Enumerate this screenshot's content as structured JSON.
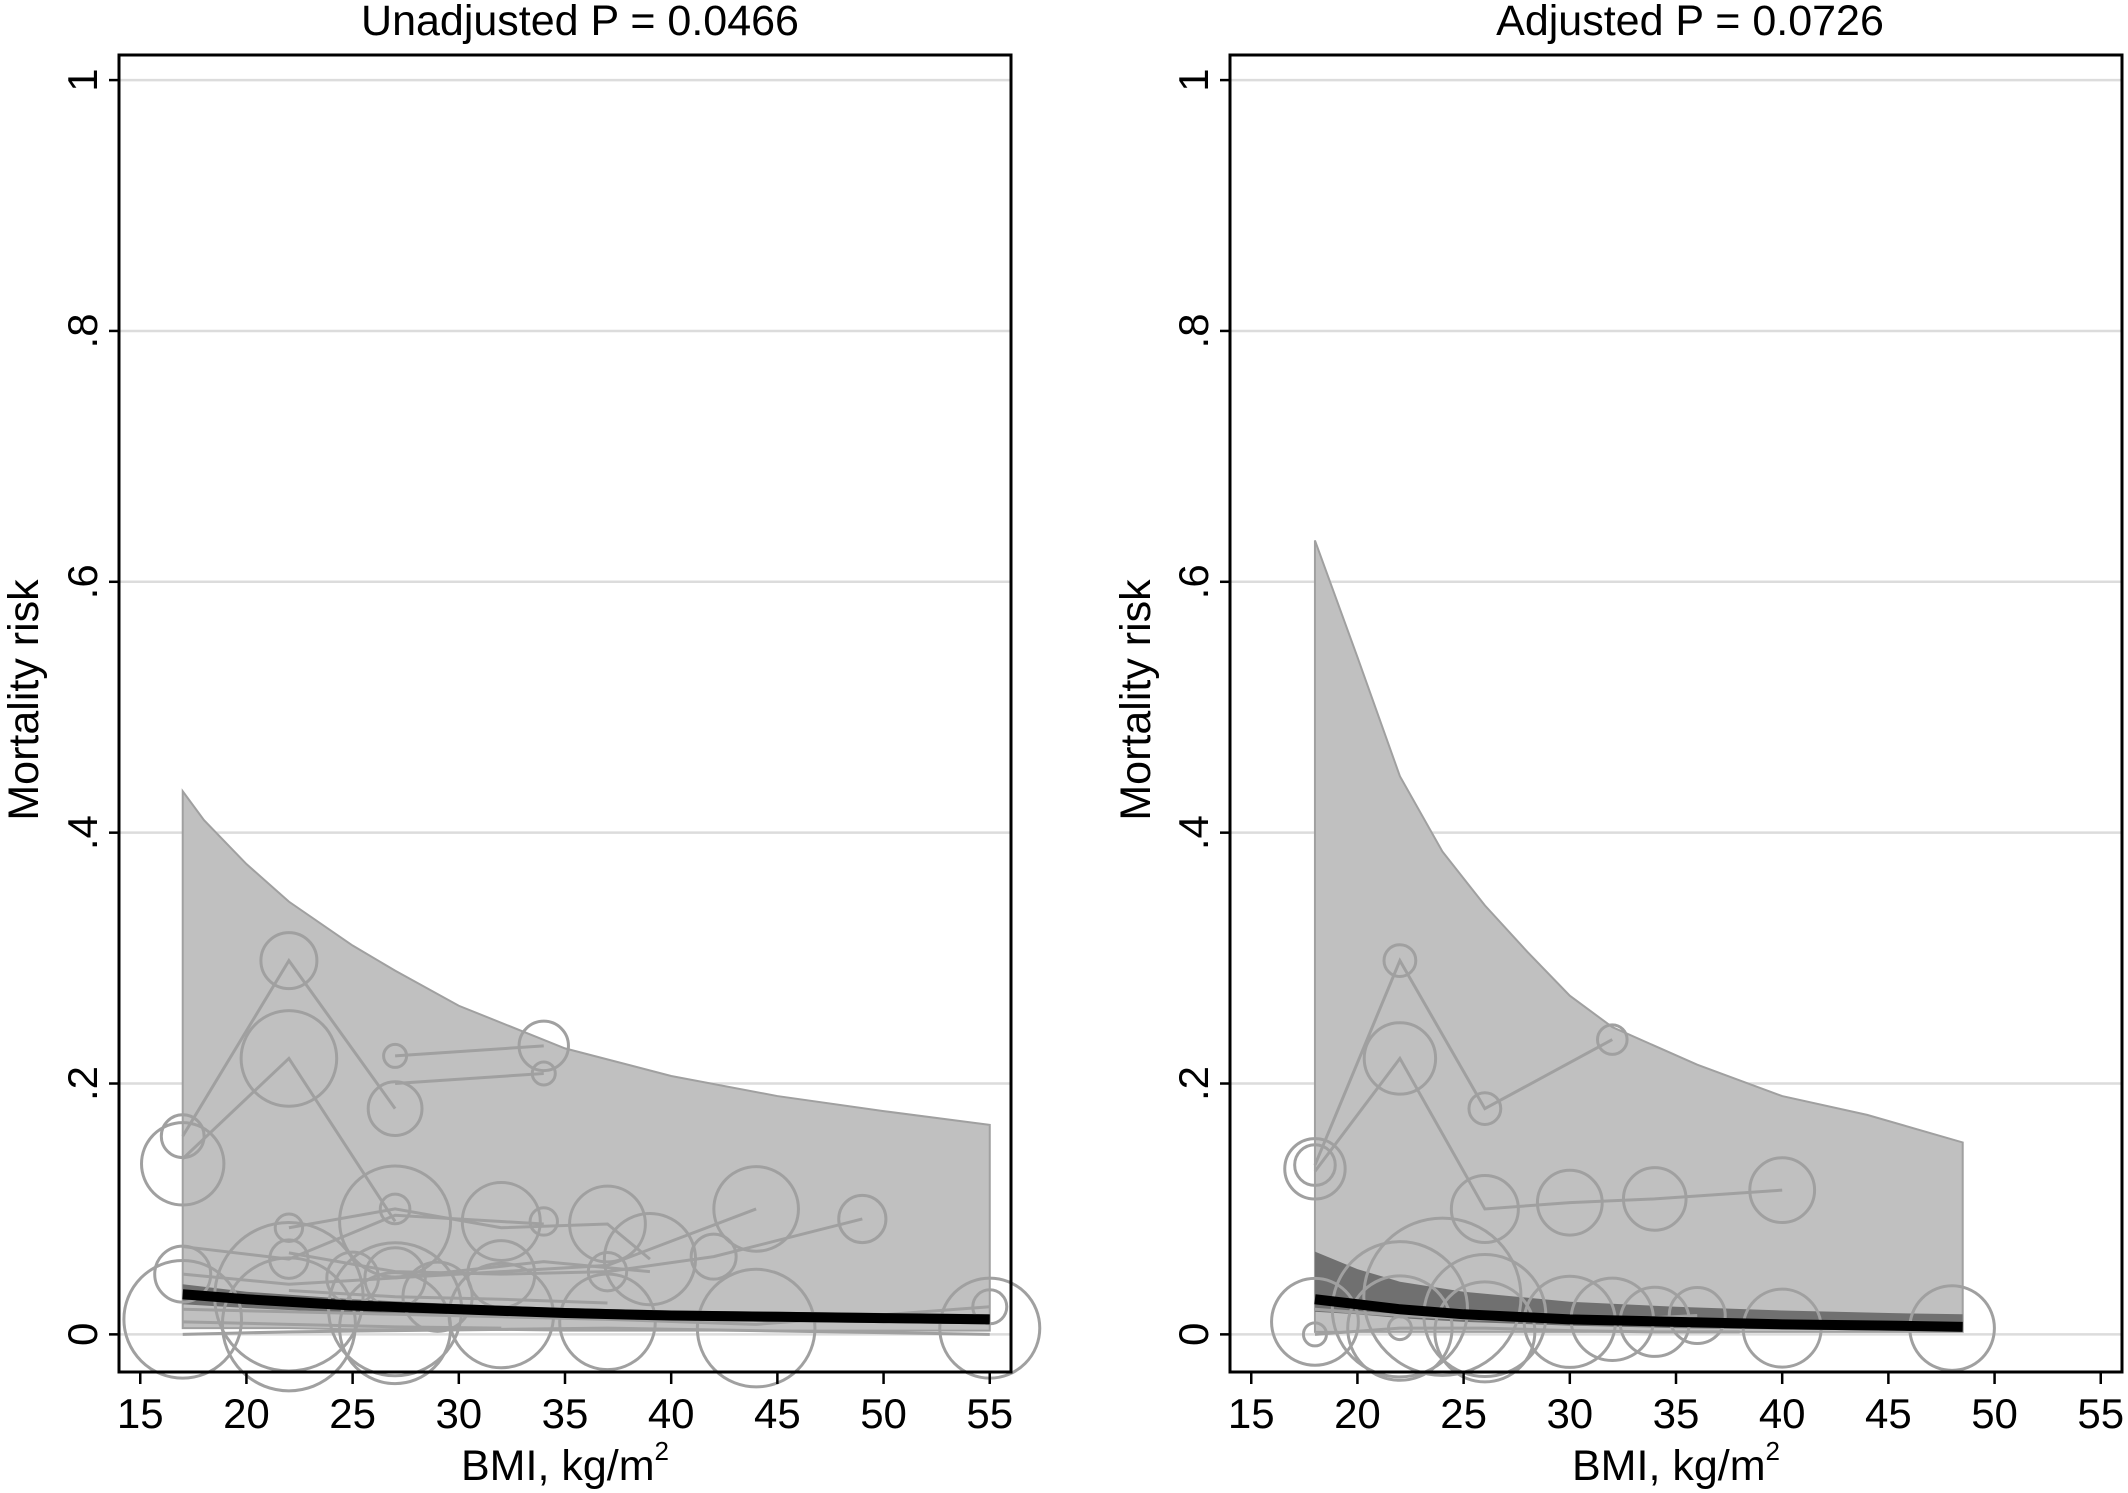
{
  "charts": [
    {
      "title": "Unadjusted P = 0.0466",
      "ylabel": "Mortality risk",
      "xlabel": "BMI, kg/m",
      "xlabel_sup": "2",
      "xticks": [
        "15",
        "20",
        "25",
        "30",
        "35",
        "40",
        "45",
        "50",
        "55"
      ],
      "yticks": [
        "0",
        ".2",
        ".4",
        ".6",
        ".8",
        "1"
      ]
    },
    {
      "title": "Adjusted P = 0.0726",
      "ylabel": "Mortality risk",
      "xlabel": "BMI, kg/m",
      "xlabel_sup": "2",
      "xticks": [
        "15",
        "20",
        "25",
        "30",
        "35",
        "40",
        "45",
        "50",
        "55"
      ],
      "yticks": [
        "0",
        ".2",
        ".4",
        ".6",
        ".8",
        "1"
      ]
    }
  ],
  "chart_data": [
    {
      "type": "scatter",
      "title": "Unadjusted P = 0.0466",
      "xlabel": "BMI, kg/m2",
      "ylabel": "Mortality risk",
      "xlim": [
        14,
        56
      ],
      "ylim": [
        -0.03,
        1.02
      ],
      "grid": true,
      "colors": {
        "band": "#c0c0c0",
        "band_edge": "#a0a0a0",
        "inner_band": "#707070",
        "fit": "#000000",
        "study": "#a0a0a0"
      },
      "ci_band": {
        "x": [
          17,
          18,
          20,
          22,
          25,
          27,
          30,
          35,
          40,
          45,
          50,
          55
        ],
        "lower": [
          0.005,
          0.005,
          0.005,
          0.005,
          0.004,
          0.004,
          0.004,
          0.003,
          0.003,
          0.003,
          0.003,
          0.003
        ],
        "upper": [
          0.433,
          0.41,
          0.375,
          0.345,
          0.31,
          0.29,
          0.262,
          0.228,
          0.206,
          0.19,
          0.178,
          0.167
        ]
      },
      "inner_band": {
        "x": [
          17,
          20,
          25,
          30,
          35,
          40,
          45,
          50,
          55
        ],
        "lower": [
          0.024,
          0.021,
          0.017,
          0.014,
          0.012,
          0.011,
          0.01,
          0.009,
          0.008
        ],
        "upper": [
          0.04,
          0.034,
          0.028,
          0.024,
          0.021,
          0.019,
          0.018,
          0.017,
          0.016
        ]
      },
      "fit_line": {
        "x": [
          17,
          20,
          25,
          30,
          35,
          40,
          45,
          50,
          55
        ],
        "y": [
          0.032,
          0.028,
          0.023,
          0.02,
          0.017,
          0.015,
          0.014,
          0.013,
          0.012
        ]
      },
      "study_lines": [
        {
          "x": [
            17,
            22,
            27
          ],
          "y": [
            0.158,
            0.298,
            0.18
          ]
        },
        {
          "x": [
            17,
            22,
            27
          ],
          "y": [
            0.14,
            0.22,
            0.09
          ]
        },
        {
          "x": [
            27,
            34
          ],
          "y": [
            0.222,
            0.23
          ]
        },
        {
          "x": [
            27,
            34
          ],
          "y": [
            0.2,
            0.208
          ]
        },
        {
          "x": [
            17,
            22,
            27,
            32,
            34
          ],
          "y": [
            0.07,
            0.06,
            0.095,
            0.09,
            0.088
          ]
        },
        {
          "x": [
            22,
            27,
            32,
            37,
            39
          ],
          "y": [
            0.085,
            0.1,
            0.085,
            0.088,
            0.06
          ]
        },
        {
          "x": [
            17,
            22,
            27,
            32,
            37,
            44
          ],
          "y": [
            0.048,
            0.04,
            0.045,
            0.05,
            0.055,
            0.1
          ]
        },
        {
          "x": [
            27,
            34,
            39
          ],
          "y": [
            0.045,
            0.058,
            0.05
          ]
        },
        {
          "x": [
            22,
            27,
            32,
            37,
            42,
            49
          ],
          "y": [
            0.065,
            0.05,
            0.048,
            0.05,
            0.062,
            0.092
          ]
        },
        {
          "x": [
            17,
            22,
            27,
            32,
            37,
            44,
            55
          ],
          "y": [
            0.02,
            0.018,
            0.016,
            0.014,
            0.012,
            0.008,
            0.022
          ]
        },
        {
          "x": [
            17,
            22,
            27,
            32,
            37,
            44,
            55
          ],
          "y": [
            0.0,
            0.002,
            0.003,
            0.004,
            0.005,
            0.003,
            0.0
          ]
        },
        {
          "x": [
            17,
            22,
            27,
            34,
            39
          ],
          "y": [
            0.03,
            0.025,
            0.02,
            0.018,
            0.012
          ]
        },
        {
          "x": [
            17,
            22,
            27,
            32
          ],
          "y": [
            0.01,
            0.008,
            0.006,
            0.005
          ]
        },
        {
          "x": [
            22,
            27,
            32,
            37
          ],
          "y": [
            0.035,
            0.03,
            0.028,
            0.025
          ]
        }
      ],
      "study_points": [
        {
          "x": 17,
          "y": 0.158,
          "size": 1.4
        },
        {
          "x": 22,
          "y": 0.298,
          "size": 2.0
        },
        {
          "x": 27,
          "y": 0.18,
          "size": 1.9
        },
        {
          "x": 17,
          "y": 0.136,
          "size": 3.2
        },
        {
          "x": 22,
          "y": 0.22,
          "size": 3.8
        },
        {
          "x": 34,
          "y": 0.23,
          "size": 1.7
        },
        {
          "x": 27,
          "y": 0.222,
          "size": 0.5
        },
        {
          "x": 34,
          "y": 0.208,
          "size": 0.5
        },
        {
          "x": 27,
          "y": 0.09,
          "size": 4.5
        },
        {
          "x": 32,
          "y": 0.09,
          "size": 3.0
        },
        {
          "x": 37,
          "y": 0.088,
          "size": 2.9
        },
        {
          "x": 44,
          "y": 0.1,
          "size": 3.3
        },
        {
          "x": 49,
          "y": 0.092,
          "size": 1.6
        },
        {
          "x": 22,
          "y": 0.085,
          "size": 0.7
        },
        {
          "x": 27,
          "y": 0.1,
          "size": 0.8
        },
        {
          "x": 34,
          "y": 0.09,
          "size": 0.7
        },
        {
          "x": 39,
          "y": 0.06,
          "size": 3.6
        },
        {
          "x": 42,
          "y": 0.062,
          "size": 1.5
        },
        {
          "x": 17,
          "y": 0.048,
          "size": 2.0
        },
        {
          "x": 22,
          "y": 0.06,
          "size": 1.2
        },
        {
          "x": 27,
          "y": 0.045,
          "size": 2.2
        },
        {
          "x": 32,
          "y": 0.048,
          "size": 2.5
        },
        {
          "x": 37,
          "y": 0.05,
          "size": 1.2
        },
        {
          "x": 17,
          "y": 0.012,
          "size": 4.8
        },
        {
          "x": 22,
          "y": 0.03,
          "size": 6.2
        },
        {
          "x": 27,
          "y": 0.02,
          "size": 5.5
        },
        {
          "x": 32,
          "y": 0.015,
          "size": 4.2
        },
        {
          "x": 37,
          "y": 0.01,
          "size": 3.8
        },
        {
          "x": 44,
          "y": 0.005,
          "size": 4.8
        },
        {
          "x": 55,
          "y": 0.005,
          "size": 4.0
        },
        {
          "x": 25,
          "y": 0.045,
          "size": 1.8
        },
        {
          "x": 29,
          "y": 0.03,
          "size": 2.6
        },
        {
          "x": 55,
          "y": 0.022,
          "size": 1.0
        },
        {
          "x": 22,
          "y": 0.008,
          "size": 5.5
        },
        {
          "x": 27,
          "y": 0.005,
          "size": 4.5
        }
      ]
    },
    {
      "type": "scatter",
      "title": "Adjusted P = 0.0726",
      "xlabel": "BMI, kg/m2",
      "ylabel": "Mortality risk",
      "xlim": [
        14,
        56
      ],
      "ylim": [
        -0.03,
        1.02
      ],
      "grid": true,
      "colors": {
        "band": "#c0c0c0",
        "band_edge": "#a0a0a0",
        "inner_band": "#707070",
        "fit": "#000000",
        "study": "#a0a0a0"
      },
      "ci_band": {
        "x": [
          18,
          20,
          22,
          24,
          26,
          28,
          30,
          32,
          36,
          40,
          44,
          48.5
        ],
        "lower": [
          0.002,
          0.002,
          0.002,
          0.002,
          0.002,
          0.002,
          0.002,
          0.002,
          0.002,
          0.002,
          0.002,
          0.002
        ],
        "upper": [
          0.633,
          0.54,
          0.445,
          0.385,
          0.342,
          0.305,
          0.27,
          0.245,
          0.215,
          0.19,
          0.175,
          0.153
        ]
      },
      "inner_band": {
        "x": [
          18,
          20,
          22,
          25,
          30,
          35,
          40,
          45,
          48.5
        ],
        "lower": [
          0.018,
          0.016,
          0.013,
          0.01,
          0.007,
          0.005,
          0.004,
          0.003,
          0.003
        ],
        "upper": [
          0.066,
          0.052,
          0.042,
          0.034,
          0.026,
          0.022,
          0.019,
          0.017,
          0.016
        ]
      },
      "fit_line": {
        "x": [
          18,
          20,
          22,
          25,
          30,
          35,
          40,
          45,
          48.5
        ],
        "y": [
          0.028,
          0.024,
          0.02,
          0.016,
          0.012,
          0.01,
          0.008,
          0.007,
          0.006
        ]
      },
      "study_lines": [
        {
          "x": [
            18,
            22,
            26,
            32
          ],
          "y": [
            0.135,
            0.298,
            0.18,
            0.235
          ]
        },
        {
          "x": [
            18,
            22,
            26,
            30,
            34,
            40
          ],
          "y": [
            0.13,
            0.22,
            0.1,
            0.105,
            0.108,
            0.115
          ]
        },
        {
          "x": [
            18,
            22,
            26,
            30,
            34,
            38
          ],
          "y": [
            0.0,
            0.005,
            0.005,
            0.003,
            0.002,
            0.002
          ]
        },
        {
          "x": [
            18,
            22,
            26,
            30,
            36
          ],
          "y": [
            0.02,
            0.015,
            0.012,
            0.01,
            0.015
          ]
        }
      ],
      "study_points": [
        {
          "x": 18,
          "y": 0.135,
          "size": 1.3
        },
        {
          "x": 22,
          "y": 0.298,
          "size": 0.9
        },
        {
          "x": 26,
          "y": 0.18,
          "size": 0.9
        },
        {
          "x": 32,
          "y": 0.235,
          "size": 0.8
        },
        {
          "x": 18,
          "y": 0.132,
          "size": 2.2
        },
        {
          "x": 22,
          "y": 0.22,
          "size": 2.7
        },
        {
          "x": 26,
          "y": 0.1,
          "size": 2.5
        },
        {
          "x": 30,
          "y": 0.105,
          "size": 2.4
        },
        {
          "x": 34,
          "y": 0.108,
          "size": 2.3
        },
        {
          "x": 40,
          "y": 0.115,
          "size": 2.4
        },
        {
          "x": 18,
          "y": 0.01,
          "size": 3.4
        },
        {
          "x": 22,
          "y": 0.02,
          "size": 5.6
        },
        {
          "x": 24,
          "y": 0.03,
          "size": 6.6
        },
        {
          "x": 26,
          "y": 0.015,
          "size": 5.0
        },
        {
          "x": 30,
          "y": 0.01,
          "size": 3.6
        },
        {
          "x": 32,
          "y": 0.012,
          "size": 3.2
        },
        {
          "x": 34,
          "y": 0.01,
          "size": 2.6
        },
        {
          "x": 36,
          "y": 0.015,
          "size": 2.0
        },
        {
          "x": 40,
          "y": 0.005,
          "size": 3.0
        },
        {
          "x": 48,
          "y": 0.005,
          "size": 3.3
        },
        {
          "x": 22,
          "y": 0.005,
          "size": 4.2
        },
        {
          "x": 26,
          "y": 0.002,
          "size": 4.0
        },
        {
          "x": 18,
          "y": 0.0,
          "size": 0.5
        },
        {
          "x": 22,
          "y": 0.005,
          "size": 0.5
        }
      ]
    }
  ]
}
